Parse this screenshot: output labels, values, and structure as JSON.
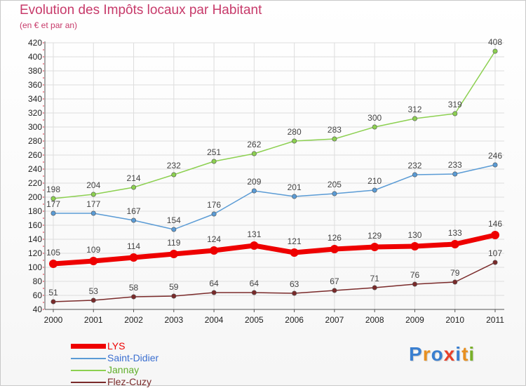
{
  "header": {
    "title": "Evolution des Impôts locaux par Habitant",
    "subtitle": "(en € et par an)"
  },
  "logo": {
    "text": "Proxiti",
    "colors": [
      "#3a7fd0",
      "#e89020",
      "#3a7fd0",
      "#e8402a",
      "#3a7fd0",
      "#e89020",
      "#78b028"
    ]
  },
  "chart_data": {
    "type": "line",
    "title": "Evolution des Impôts locaux par Habitant",
    "subtitle": "(en € et par an)",
    "xlabel": "",
    "ylabel": "",
    "x": [
      "2000",
      "2001",
      "2002",
      "2003",
      "2004",
      "2005",
      "2006",
      "2007",
      "2008",
      "2009",
      "2010",
      "2011"
    ],
    "ylim": [
      40,
      420
    ],
    "yticks": [
      40,
      60,
      80,
      100,
      120,
      140,
      160,
      180,
      200,
      220,
      240,
      260,
      280,
      300,
      320,
      340,
      360,
      380,
      400,
      420
    ],
    "grid": true,
    "legend_position": "bottom-left",
    "series": [
      {
        "name": "LYS",
        "values": [
          105,
          109,
          114,
          119,
          124,
          131,
          121,
          126,
          129,
          130,
          133,
          146
        ],
        "color": "#ee0000",
        "emphasis": true
      },
      {
        "name": "Saint-Didier",
        "values": [
          177,
          177,
          167,
          154,
          176,
          209,
          201,
          205,
          210,
          232,
          233,
          246
        ],
        "color": "#5a9bd5",
        "label_color": "#3b6fd0"
      },
      {
        "name": "Jannay",
        "values": [
          198,
          204,
          214,
          232,
          251,
          262,
          280,
          283,
          300,
          312,
          319,
          408
        ],
        "color": "#8cd050",
        "label_color": "#5fae2a"
      },
      {
        "name": "Flez-Cuzy",
        "values": [
          51,
          53,
          58,
          59,
          64,
          64,
          63,
          67,
          71,
          76,
          79,
          107
        ],
        "color": "#7a2a2a",
        "label_color": "#7a2a2a"
      }
    ]
  }
}
